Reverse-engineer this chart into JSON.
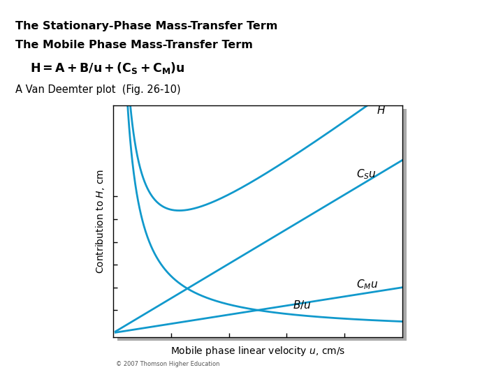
{
  "title1": "The Stationary-Phase Mass-Transfer Term",
  "title2": "The Mobile Phase Mass-Transfer Term",
  "subtitle": "A Van Deemter plot  (Fig. 26-10)",
  "copyright": "© 2007 Thomson Higher Education",
  "background": "#ffffff",
  "curve_color": "#1199cc",
  "plot_bg": "#ffffff",
  "shadow_color": "#aaaaaa",
  "A": 0.05,
  "B": 0.25,
  "Cs": 0.038,
  "Cm": 0.01,
  "u_min": 0.08,
  "u_max": 10.0,
  "xlabel": "Mobile phase linear velocity $u$, cm/s",
  "ylabel": "Contribution to $H$, cm",
  "title_fontsize": 11.5,
  "eq_fontsize": 12.5,
  "subtitle_fontsize": 10.5,
  "label_fontsize": 11,
  "axis_label_fontsize": 10
}
